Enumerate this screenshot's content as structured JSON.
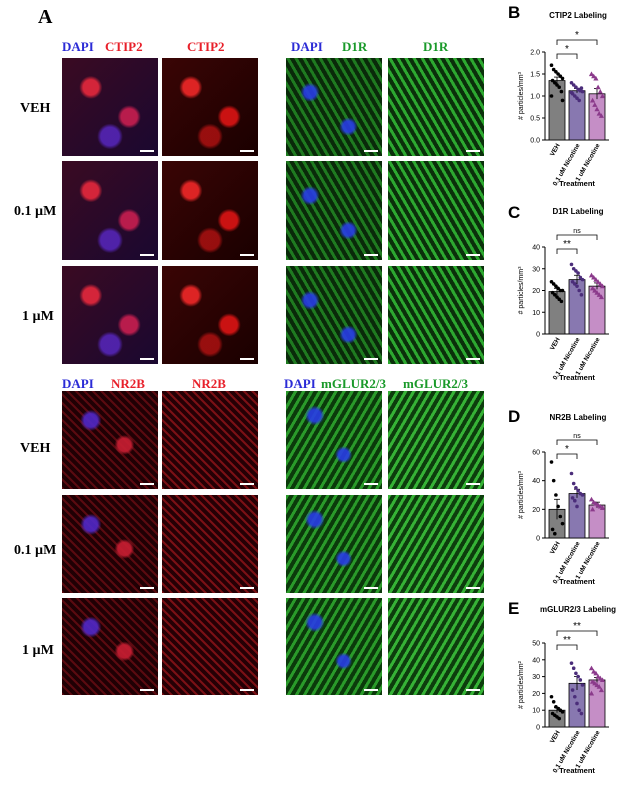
{
  "panel_a": {
    "letter": "A",
    "row_labels": [
      "VEH",
      "0.1 µM",
      "1 µM"
    ],
    "groups": [
      {
        "name": "ctip2",
        "merge_prefix": "DAPI",
        "marker": "CTIP2",
        "marker_color": "#e8202a"
      },
      {
        "name": "d1r",
        "merge_prefix": "DAPI",
        "marker": "D1R",
        "marker_color": "#1a9a2a"
      },
      {
        "name": "nr2b",
        "merge_prefix": "DAPI",
        "marker": "NR2B",
        "marker_color": "#e8202a"
      },
      {
        "name": "mglur",
        "merge_prefix": "DAPI",
        "marker": "mGLUR2/3",
        "marker_color": "#1a9a2a"
      }
    ],
    "dapi_color": "#2b2bd6"
  },
  "chart_data": [
    {
      "letter": "B",
      "type": "bar",
      "title": "CTIP2 Labeling",
      "categories": [
        "VEH",
        "0.1 uM Nicotine",
        "1 uM Nicotine"
      ],
      "values": [
        1.35,
        1.12,
        1.05
      ],
      "errors": [
        0.08,
        0.05,
        0.12
      ],
      "colors": [
        "#808080",
        "#8878b0",
        "#c58ec6"
      ],
      "markers": [
        "circle",
        "circle",
        "triangle"
      ],
      "marker_colors": [
        "#000000",
        "#4b2d7a",
        "#8b3a8b"
      ],
      "points": [
        [
          1.7,
          1.6,
          1.55,
          1.5,
          1.45,
          1.4,
          1.35,
          1.3,
          1.25,
          1.2,
          1.1,
          1.0,
          0.9
        ],
        [
          1.3,
          1.25,
          1.2,
          1.15,
          1.12,
          1.1,
          1.05,
          1.0,
          0.95,
          0.9,
          1.18,
          1.08
        ],
        [
          1.5,
          1.45,
          1.4,
          1.2,
          1.1,
          1.0,
          0.9,
          0.8,
          0.7,
          0.6,
          0.55
        ]
      ],
      "ylabel": "# particles/mm³",
      "xlabel": "Treatment",
      "yticks": [
        "0.0",
        "0.5",
        "1.0",
        "1.5",
        "2.0"
      ],
      "ylim": [
        0,
        2.0
      ],
      "significance": [
        {
          "from": 0,
          "to": 1,
          "label": "*"
        },
        {
          "from": 0,
          "to": 2,
          "label": "*"
        }
      ]
    },
    {
      "letter": "C",
      "type": "bar",
      "title": "D1R Labeling",
      "categories": [
        "VEH",
        "0.1 uM Nicotine",
        "1 uM Nicotine"
      ],
      "values": [
        19.5,
        25,
        22
      ],
      "errors": [
        1.5,
        2.0,
        1.5
      ],
      "colors": [
        "#808080",
        "#8878b0",
        "#c58ec6"
      ],
      "markers": [
        "circle",
        "circle",
        "triangle"
      ],
      "marker_colors": [
        "#000000",
        "#4b2d7a",
        "#8b3a8b"
      ],
      "points": [
        [
          24,
          23,
          22,
          21,
          20,
          20,
          19,
          18,
          17,
          16,
          15
        ],
        [
          32,
          30,
          29,
          28,
          26,
          25,
          24,
          23,
          22,
          20,
          18
        ],
        [
          27,
          26,
          25,
          24,
          23,
          22,
          21,
          20,
          19,
          18,
          17
        ]
      ],
      "ylabel": "# particles/mm³",
      "xlabel": "Treatment",
      "yticks": [
        "0",
        "10",
        "20",
        "30",
        "40"
      ],
      "ylim": [
        0,
        40
      ],
      "significance": [
        {
          "from": 0,
          "to": 1,
          "label": "**"
        },
        {
          "from": 0,
          "to": 2,
          "label": "ns"
        }
      ]
    },
    {
      "letter": "D",
      "type": "bar",
      "title": "NR2B Labeling",
      "categories": [
        "VEH",
        "0.1 uM Nicotine",
        "1 uM Nicotine"
      ],
      "values": [
        20,
        31,
        23
      ],
      "errors": [
        7,
        3,
        2
      ],
      "colors": [
        "#808080",
        "#8878b0",
        "#c58ec6"
      ],
      "markers": [
        "circle",
        "circle",
        "triangle"
      ],
      "marker_colors": [
        "#000000",
        "#4b2d7a",
        "#8b3a8b"
      ],
      "points": [
        [
          53,
          40,
          30,
          22,
          15,
          10,
          6,
          3
        ],
        [
          45,
          38,
          35,
          33,
          31,
          30,
          28,
          26,
          22
        ],
        [
          27,
          25,
          24,
          23,
          22,
          21,
          20
        ]
      ],
      "ylabel": "# particles/mm³",
      "xlabel": "Treatment",
      "yticks": [
        "0",
        "20",
        "40",
        "60"
      ],
      "ylim": [
        0,
        60
      ],
      "significance": [
        {
          "from": 0,
          "to": 1,
          "label": "*"
        },
        {
          "from": 0,
          "to": 2,
          "label": "ns"
        }
      ]
    },
    {
      "letter": "E",
      "type": "bar",
      "title": "mGLUR2/3 Labeling",
      "categories": [
        "VEH",
        "0.1 uM Nicotine",
        "1 uM Nicotine"
      ],
      "values": [
        10,
        26,
        28
      ],
      "errors": [
        1.5,
        4,
        1.5
      ],
      "colors": [
        "#808080",
        "#8878b0",
        "#c58ec6"
      ],
      "markers": [
        "circle",
        "circle",
        "triangle"
      ],
      "marker_colors": [
        "#000000",
        "#4b2d7a",
        "#8b3a8b"
      ],
      "points": [
        [
          18,
          15,
          12,
          11,
          10,
          9,
          8,
          7,
          6,
          5
        ],
        [
          38,
          35,
          32,
          30,
          28,
          25,
          22,
          18,
          14,
          10,
          8
        ],
        [
          35,
          33,
          32,
          30,
          29,
          28,
          27,
          26,
          25,
          24,
          22,
          20
        ]
      ],
      "ylabel": "# particles/mm²",
      "xlabel": "Treatment",
      "yticks": [
        "0",
        "10",
        "20",
        "30",
        "40",
        "50"
      ],
      "ylim": [
        0,
        50
      ],
      "significance": [
        {
          "from": 0,
          "to": 1,
          "label": "**"
        },
        {
          "from": 0,
          "to": 2,
          "label": "**"
        }
      ]
    }
  ]
}
